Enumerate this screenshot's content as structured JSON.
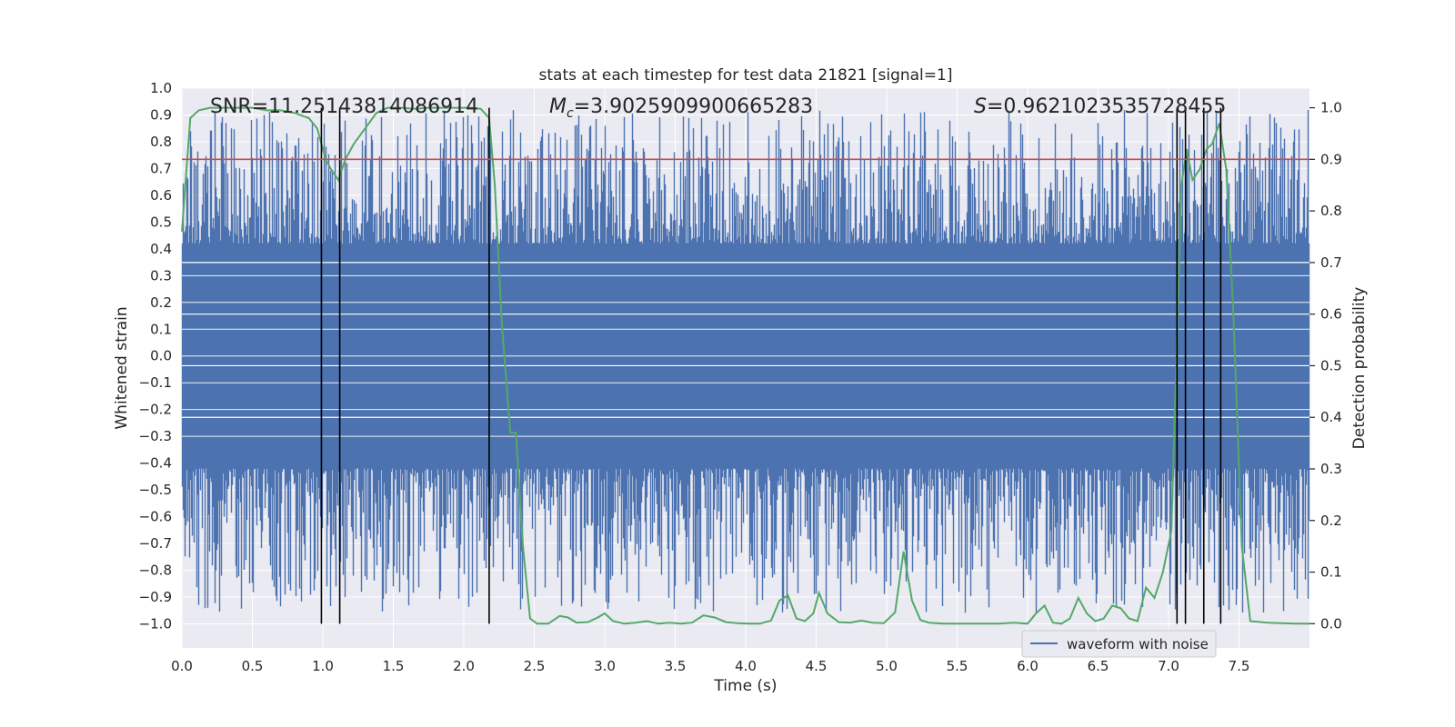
{
  "chart_data": {
    "type": "line",
    "title": "stats at each timestep for test data 21821 [signal=1]",
    "xlabel": "Time (s)",
    "ylabel": "Whitened strain",
    "y2label": "Detection probability",
    "xlim": [
      0.0,
      8.0
    ],
    "ylim": [
      -1.09,
      1.0
    ],
    "y2lim": [
      -0.047,
      1.038
    ],
    "xticks": [
      "0.0",
      "0.5",
      "1.0",
      "1.5",
      "2.0",
      "2.5",
      "3.0",
      "3.5",
      "4.0",
      "4.5",
      "5.0",
      "5.5",
      "6.0",
      "6.5",
      "7.0",
      "7.5"
    ],
    "yticks": [
      "1.0",
      "0.9",
      "0.8",
      "0.7",
      "0.6",
      "0.5",
      "0.4",
      "0.3",
      "0.2",
      "0.1",
      "0.0",
      "-0.1",
      "-0.2",
      "-0.3",
      "-0.4",
      "-0.5",
      "-0.6",
      "-0.7",
      "-0.8",
      "-0.9",
      "-1.0"
    ],
    "y2ticks": [
      "1.0",
      "0.9",
      "0.8",
      "0.7",
      "0.6",
      "0.5",
      "0.4",
      "0.3",
      "0.2",
      "0.1",
      "0.0"
    ],
    "annotations": {
      "snr": "SNR=11.25143814086914",
      "mc_symbol": "M",
      "mc_sub": "c",
      "mc_value": "=3.9025909900665283",
      "s_symbol": "S",
      "s_value": "=0.9621023535728455"
    },
    "legend": {
      "label": "waveform with noise",
      "placement": "lower-right"
    },
    "threshold": {
      "value": 0.9,
      "axis": "right",
      "color": "#c44e52"
    },
    "vlines_x": [
      0.99,
      1.12,
      2.18,
      7.06,
      7.12,
      7.25,
      7.37
    ],
    "waveform": {
      "name": "waveform with noise",
      "color": "#4c72b0",
      "sample_rate": 2048,
      "samples": 16384,
      "core_amplitude": 0.3,
      "max_amplitude": 0.92
    },
    "detection_probability": {
      "name": "detection probability",
      "color": "#55a868",
      "x": [
        0.0,
        0.06,
        0.12,
        0.2,
        0.3,
        0.4,
        0.5,
        0.6,
        0.7,
        0.8,
        0.9,
        0.96,
        1.02,
        1.06,
        1.11,
        1.16,
        1.22,
        1.3,
        1.38,
        1.46,
        1.55,
        1.65,
        1.75,
        1.85,
        1.95,
        2.05,
        2.12,
        2.18,
        2.22,
        2.27,
        2.33,
        2.37,
        2.42,
        2.47,
        2.52,
        2.6,
        2.68,
        2.74,
        2.8,
        2.88,
        2.95,
        3.0,
        3.06,
        3.14,
        3.22,
        3.3,
        3.38,
        3.46,
        3.54,
        3.62,
        3.7,
        3.78,
        3.86,
        3.94,
        4.02,
        4.1,
        4.18,
        4.24,
        4.3,
        4.36,
        4.42,
        4.48,
        4.52,
        4.58,
        4.66,
        4.74,
        4.82,
        4.9,
        4.98,
        5.06,
        5.12,
        5.18,
        5.24,
        5.3,
        5.4,
        5.5,
        5.6,
        5.7,
        5.8,
        5.9,
        6.0,
        6.06,
        6.12,
        6.18,
        6.24,
        6.3,
        6.36,
        6.42,
        6.48,
        6.54,
        6.6,
        6.66,
        6.72,
        6.78,
        6.84,
        6.9,
        6.96,
        7.02,
        7.06,
        7.09,
        7.13,
        7.17,
        7.22,
        7.27,
        7.31,
        7.36,
        7.41,
        7.46,
        7.52,
        7.58,
        7.7,
        7.9,
        8.0
      ],
      "y": [
        0.76,
        0.98,
        0.995,
        1.0,
        1.0,
        1.0,
        1.0,
        0.995,
        0.995,
        0.99,
        0.98,
        0.96,
        0.9,
        0.88,
        0.86,
        0.9,
        0.93,
        0.96,
        0.99,
        1.0,
        1.0,
        0.998,
        1.0,
        1.0,
        1.0,
        1.0,
        0.998,
        0.98,
        0.85,
        0.58,
        0.37,
        0.37,
        0.15,
        0.01,
        0.0,
        0.0,
        0.015,
        0.012,
        0.002,
        0.003,
        0.012,
        0.02,
        0.005,
        0.0,
        0.002,
        0.005,
        0.0,
        0.002,
        0.0,
        0.002,
        0.016,
        0.012,
        0.003,
        0.001,
        0.0,
        0.0,
        0.006,
        0.045,
        0.055,
        0.01,
        0.005,
        0.02,
        0.06,
        0.02,
        0.003,
        0.002,
        0.006,
        0.002,
        0.001,
        0.022,
        0.14,
        0.045,
        0.007,
        0.002,
        0.0,
        0.0,
        0.0,
        0.0,
        0.0,
        0.002,
        0.0,
        0.02,
        0.035,
        0.002,
        0.0,
        0.01,
        0.05,
        0.02,
        0.005,
        0.01,
        0.035,
        0.03,
        0.01,
        0.005,
        0.07,
        0.05,
        0.1,
        0.18,
        0.55,
        0.85,
        0.92,
        0.86,
        0.88,
        0.92,
        0.93,
        0.97,
        0.88,
        0.6,
        0.15,
        0.005,
        0.002,
        0.0,
        0.0
      ]
    }
  }
}
